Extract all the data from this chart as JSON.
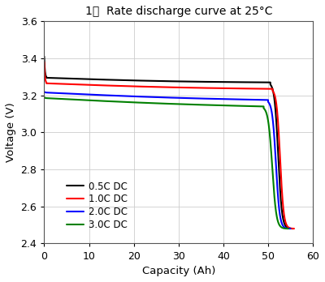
{
  "title": "1、  Rate discharge curve at 25°C",
  "xlabel": "Capacity (Ah)",
  "ylabel": "Voltage (V)",
  "xlim": [
    0,
    60
  ],
  "ylim": [
    2.4,
    3.6
  ],
  "xticks": [
    0,
    10,
    20,
    30,
    40,
    50,
    60
  ],
  "yticks": [
    2.4,
    2.6,
    2.8,
    3.0,
    3.2,
    3.4,
    3.6
  ],
  "curves": [
    {
      "label": "0.5C DC",
      "color": "#000000",
      "linewidth": 1.5,
      "start_v": 3.41,
      "drop1_end_cap": 0.5,
      "drop1_end_v": 3.295,
      "flat_v_start": 3.295,
      "flat_v_end": 3.27,
      "flat_end_cap": 50.5,
      "knee_start_v": 3.1,
      "knee_mid_cap": 53.0,
      "knee_mid_v": 3.05,
      "end_cap": 55.5,
      "end_v": 2.48
    },
    {
      "label": "1.0C DC",
      "color": "#ff0000",
      "linewidth": 1.5,
      "start_v": 3.38,
      "drop1_end_cap": 0.5,
      "drop1_end_v": 3.265,
      "flat_v_start": 3.265,
      "flat_v_end": 3.235,
      "flat_end_cap": 51.0,
      "knee_start_v": 3.05,
      "knee_mid_cap": 53.5,
      "knee_mid_v": 2.95,
      "end_cap": 55.8,
      "end_v": 2.48
    },
    {
      "label": "2.0C DC",
      "color": "#0000ff",
      "linewidth": 1.5,
      "start_v": 3.22,
      "drop1_end_cap": 0.5,
      "drop1_end_v": 3.215,
      "flat_v_start": 3.215,
      "flat_v_end": 3.175,
      "flat_end_cap": 50.0,
      "knee_start_v": 3.0,
      "knee_mid_cap": 52.5,
      "knee_mid_v": 2.9,
      "end_cap": 55.0,
      "end_v": 2.48
    },
    {
      "label": "3.0C DC",
      "color": "#008000",
      "linewidth": 1.5,
      "start_v": 3.19,
      "drop1_end_cap": 0.5,
      "drop1_end_v": 3.185,
      "flat_v_start": 3.185,
      "flat_v_end": 3.14,
      "flat_end_cap": 49.0,
      "knee_start_v": 2.98,
      "knee_mid_cap": 51.5,
      "knee_mid_v": 2.87,
      "end_cap": 54.5,
      "end_v": 2.48
    }
  ],
  "background_color": "#ffffff",
  "grid_color": "#cccccc",
  "legend_fontsize": 8.5,
  "title_fontsize": 10,
  "label_fontsize": 9.5,
  "tick_fontsize": 9
}
